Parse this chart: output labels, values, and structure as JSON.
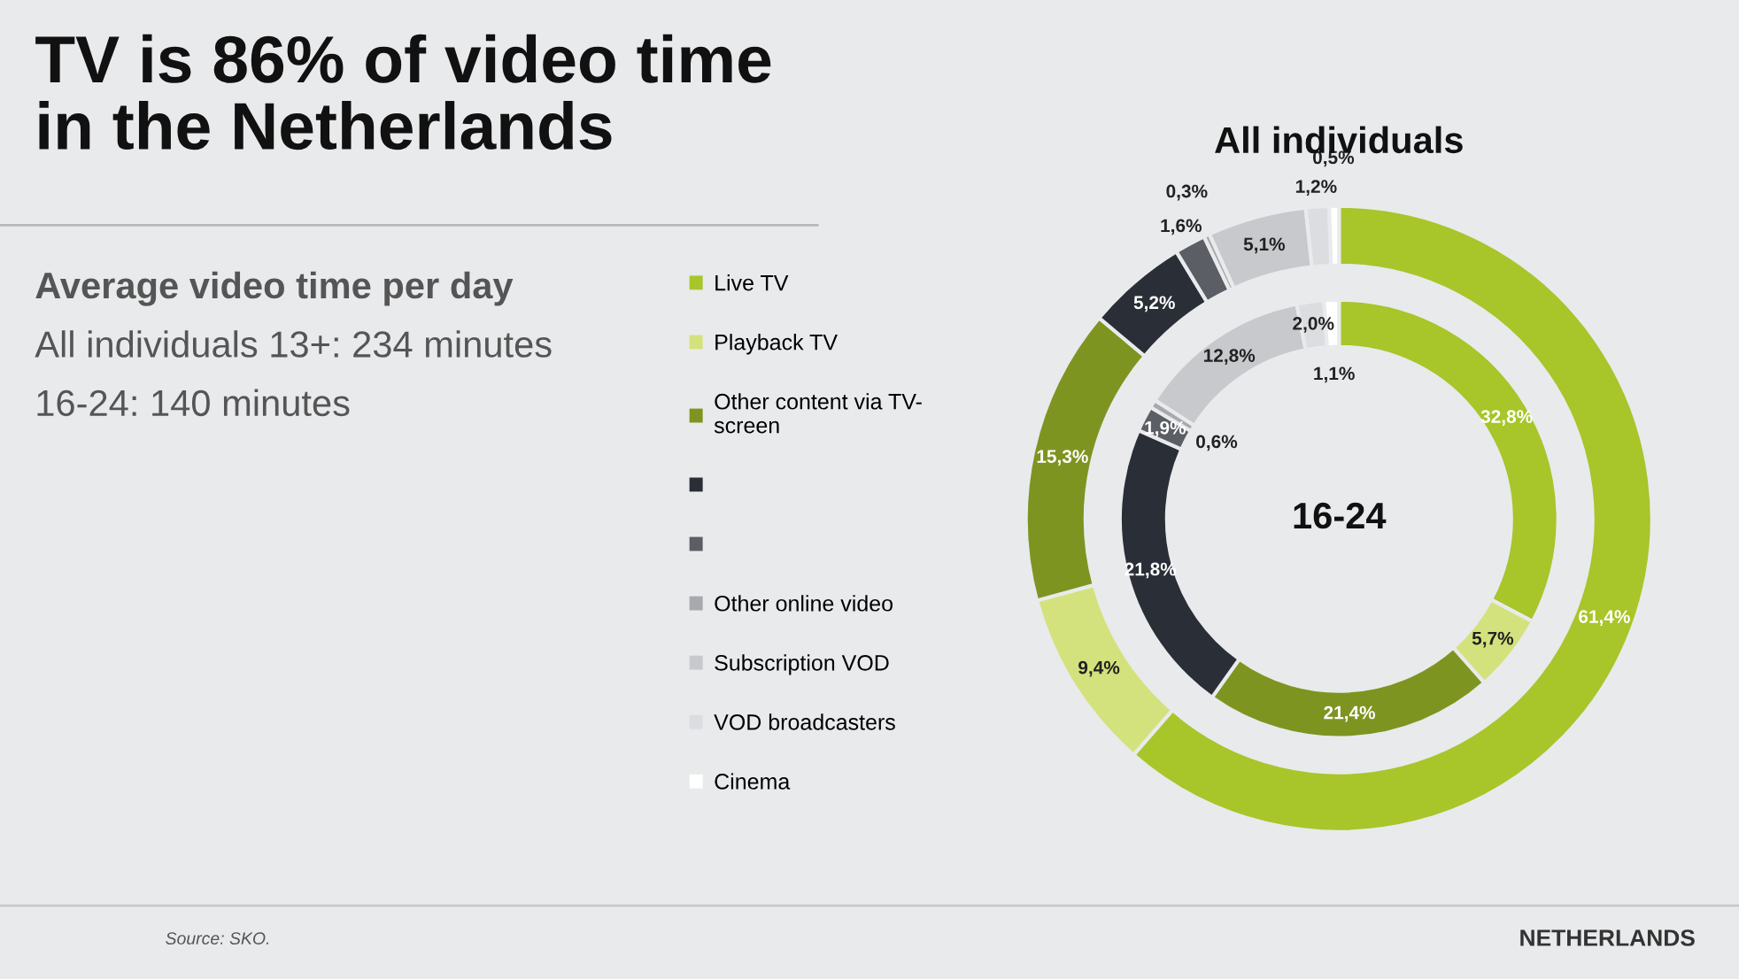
{
  "chart_data": [
    {
      "type": "other",
      "title": "TV is 86% of video time\nin the Netherlands",
      "subtitle": "Average video time per day",
      "annotations": [
        "All individuals 13+: 234 minutes",
        "16-24: 140 minutes",
        "Source: SKO.",
        "NETHERLANDS"
      ]
    },
    {
      "type": "donut",
      "categories": [
        "Live TV",
        "Playback TV",
        "Other content via TV-\nscreen",
        null,
        null,
        "Other online video",
        "Subscription VOD",
        "VOD broadcasters",
        "Cinema"
      ],
      "colors": [
        "#a8c52a",
        "#d3e27c",
        "#7e9421",
        "#2a2e36",
        "#5b5e64",
        "#a7a9ac",
        "#c8c9cc",
        "#dcdde0",
        "#ffffff"
      ],
      "series": [
        {
          "name": "All individuals",
          "values": [
            61.4,
            9.4,
            15.3,
            5.2,
            1.6,
            0.3,
            5.1,
            1.2,
            0.5
          ],
          "value_labels": [
            "61,4%",
            "9,4%",
            "15,3%",
            "5,2%",
            "1,6%",
            "0,3%",
            "5,1%",
            "1,2%",
            "0,5%"
          ]
        },
        {
          "name": "16-24",
          "values": [
            32.8,
            5.7,
            21.4,
            21.8,
            1.9,
            0.6,
            12.8,
            2.0,
            1.1
          ],
          "value_labels": [
            "32,8%",
            "5,7%",
            "21,4%",
            "21,8%",
            "1,9%",
            "0,6%",
            "12,8%",
            "2,0%",
            "1,1%"
          ]
        }
      ],
      "legend": "left"
    }
  ]
}
